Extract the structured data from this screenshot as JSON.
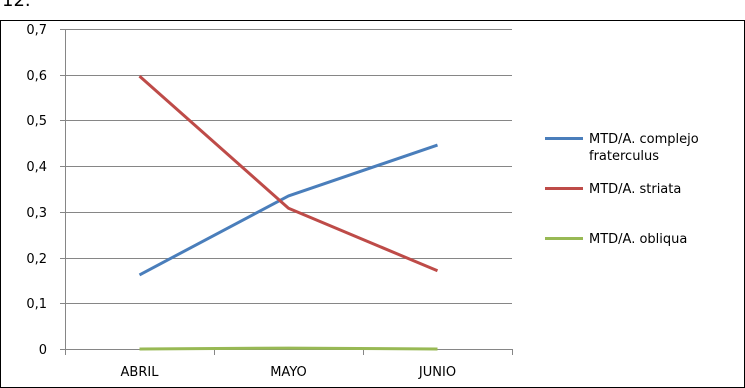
{
  "page": {
    "cropped_label": "12."
  },
  "chart_data": {
    "type": "line",
    "categories": [
      "ABRIL",
      "MAYO",
      "JUNIO"
    ],
    "series": [
      {
        "name": "MTD/A. complejo fraterculus",
        "values": [
          0.162,
          0.335,
          0.446
        ],
        "color": "#4a7ebb"
      },
      {
        "name": "MTD/A. striata",
        "values": [
          0.597,
          0.308,
          0.171
        ],
        "color": "#be4b48"
      },
      {
        "name": "MTD/A. obliqua",
        "values": [
          0.0,
          0.002,
          0.0
        ],
        "color": "#98b954"
      }
    ],
    "yticks": [
      "0",
      "0,1",
      "0,2",
      "0,3",
      "0,4",
      "0,5",
      "0,6",
      "0,7"
    ],
    "ylim": [
      0,
      0.7
    ],
    "grid": "horizontal",
    "legend": "right",
    "legend_lines": [
      [
        "MTD/A. complejo",
        "fraterculus"
      ],
      [
        "MTD/A. striata"
      ],
      [
        "MTD/A. obliqua"
      ]
    ],
    "colors": {
      "grid": "#868686",
      "axis": "#868686",
      "border": "#000000"
    }
  }
}
